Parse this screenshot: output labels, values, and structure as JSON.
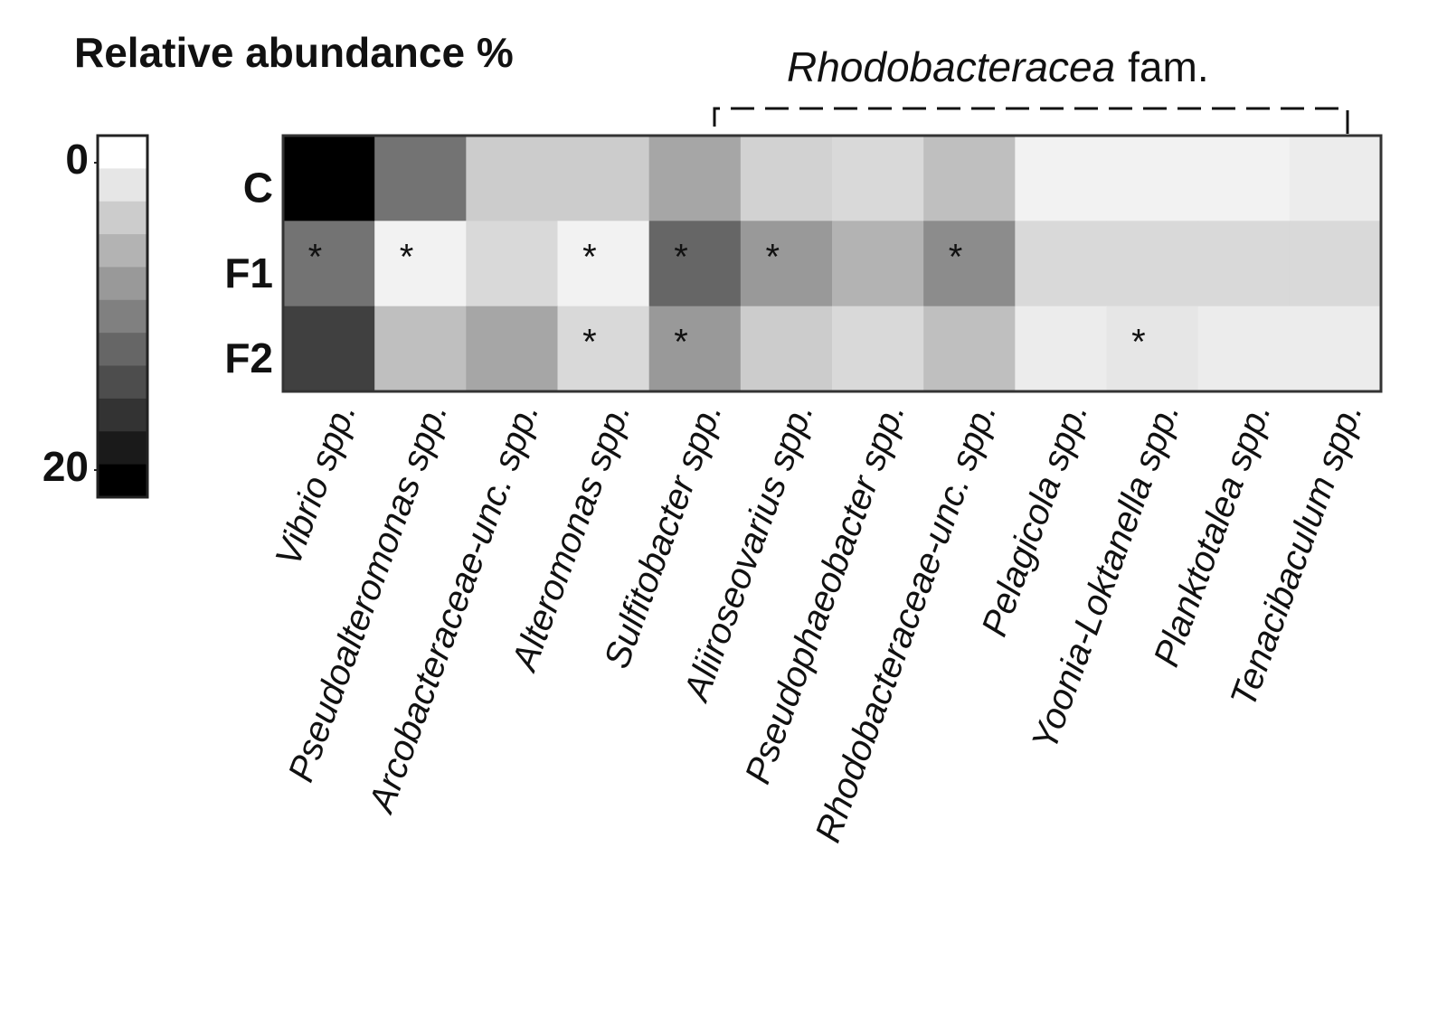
{
  "chart_data": {
    "type": "heatmap",
    "title": "Relative abundance %",
    "annotation": {
      "italic": "Rhodobacteracea",
      "text": "fam."
    },
    "rows": [
      "C",
      "F1",
      "F2"
    ],
    "columns": [
      "Vibrio spp.",
      "Pseudoalteromonas spp.",
      "Arcobacteraceae-unc. spp.",
      "Alteromonas spp.",
      "Sulfitobacter spp.",
      "Aliiroseovarius spp.",
      "Pseudophaeobacter spp.",
      "Rhodobacteraceae-unc. spp.",
      "Pelagicola spp.",
      "Yoonia-Loktanella spp.",
      "Planktotalea spp.",
      "Tenacibaculum spp."
    ],
    "values": [
      [
        20,
        11,
        4,
        4,
        7,
        3.5,
        3,
        5,
        1,
        1,
        1,
        1.5
      ],
      [
        11,
        1,
        3,
        1,
        12,
        8,
        6,
        9,
        3,
        3,
        3,
        3
      ],
      [
        15,
        5,
        7,
        3,
        8,
        4,
        3,
        5,
        1.5,
        2,
        1.5,
        1.5
      ]
    ],
    "stars": [
      [
        null,
        null,
        null,
        null,
        null,
        null,
        null,
        null,
        null,
        null,
        null,
        null
      ],
      [
        "*",
        "*",
        null,
        "*",
        "*",
        "*",
        null,
        "*",
        null,
        null,
        null,
        null
      ],
      [
        null,
        null,
        null,
        "*",
        "*",
        null,
        null,
        null,
        null,
        "*",
        null,
        null
      ]
    ],
    "zlim": [
      0,
      20
    ],
    "zticks": [
      0,
      20
    ],
    "colormap": [
      "#ffffff",
      "#000000"
    ]
  }
}
